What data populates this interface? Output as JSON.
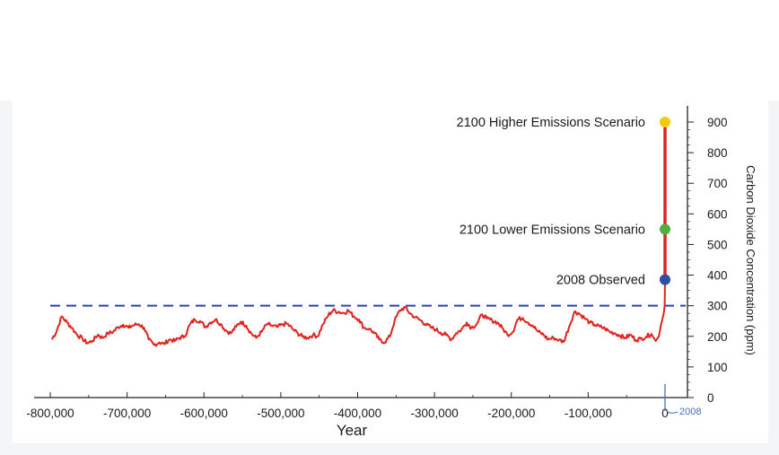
{
  "chart_data": {
    "type": "line",
    "xlabel": "Year",
    "ylabel": "Carbon Dioxide Concentration (ppm)",
    "xlim": [
      -800000,
      0
    ],
    "ylim": [
      0,
      900
    ],
    "x_ticks": [
      -800000,
      -700000,
      -600000,
      -500000,
      -400000,
      -300000,
      -200000,
      -100000,
      0
    ],
    "x_tick_labels": [
      "-800,000",
      "-700,000",
      "-600,000",
      "-500,000",
      "-400,000",
      "-300,000",
      "-200,000",
      "-100,000",
      "0"
    ],
    "y_ticks": [
      0,
      100,
      200,
      300,
      400,
      500,
      600,
      700,
      800,
      900
    ],
    "y_tick_labels": [
      "0",
      "100",
      "200",
      "300",
      "400",
      "500",
      "600",
      "700",
      "800",
      "900"
    ],
    "y_axis_position": "right",
    "grid": false,
    "series": [
      {
        "color": "#e0231d",
        "x": [
          -798000,
          -792000,
          -785000,
          -778000,
          -772000,
          -765000,
          -758000,
          -752000,
          -745000,
          -738000,
          -732000,
          -725000,
          -718000,
          -712000,
          -705000,
          -698000,
          -692000,
          -685000,
          -678000,
          -672000,
          -665000,
          -658000,
          -652000,
          -645000,
          -638000,
          -632000,
          -625000,
          -618000,
          -612000,
          -605000,
          -598000,
          -592000,
          -585000,
          -578000,
          -572000,
          -565000,
          -558000,
          -552000,
          -545000,
          -538000,
          -532000,
          -525000,
          -518000,
          -512000,
          -505000,
          -498000,
          -492000,
          -485000,
          -478000,
          -472000,
          -465000,
          -458000,
          -452000,
          -445000,
          -438000,
          -432000,
          -425000,
          -418000,
          -412000,
          -405000,
          -398000,
          -392000,
          -385000,
          -378000,
          -372000,
          -365000,
          -358000,
          -352000,
          -345000,
          -338000,
          -332000,
          -325000,
          -318000,
          -312000,
          -305000,
          -298000,
          -292000,
          -285000,
          -278000,
          -272000,
          -265000,
          -258000,
          -252000,
          -245000,
          -238000,
          -232000,
          -225000,
          -218000,
          -212000,
          -205000,
          -198000,
          -192000,
          -185000,
          -178000,
          -172000,
          -165000,
          -158000,
          -152000,
          -145000,
          -138000,
          -132000,
          -125000,
          -118000,
          -112000,
          -105000,
          -98000,
          -92000,
          -85000,
          -78000,
          -72000,
          -65000,
          -58000,
          -52000,
          -45000,
          -38000,
          -32000,
          -25000,
          -18000,
          -12000,
          -8000,
          -5000,
          -3000,
          -1500,
          -500,
          0
        ],
        "y": [
          190,
          215,
          265,
          245,
          228,
          205,
          192,
          178,
          185,
          205,
          195,
          210,
          215,
          230,
          238,
          228,
          236,
          240,
          228,
          190,
          172,
          180,
          175,
          190,
          185,
          195,
          200,
          240,
          255,
          250,
          230,
          245,
          255,
          240,
          220,
          210,
          232,
          248,
          235,
          208,
          195,
          215,
          240,
          235,
          230,
          238,
          242,
          225,
          210,
          200,
          195,
          205,
          200,
          240,
          270,
          285,
          280,
          276,
          285,
          265,
          255,
          228,
          225,
          210,
          190,
          180,
          200,
          250,
          285,
          295,
          275,
          262,
          252,
          240,
          230,
          222,
          212,
          205,
          190,
          210,
          222,
          245,
          228,
          240,
          272,
          258,
          252,
          245,
          228,
          205,
          215,
          255,
          260,
          245,
          235,
          215,
          205,
          190,
          195,
          188,
          182,
          230,
          280,
          275,
          260,
          245,
          238,
          232,
          225,
          215,
          210,
          202,
          195,
          205,
          188,
          192,
          198,
          208,
          185,
          200,
          240,
          260,
          278,
          300,
          385
        ]
      }
    ],
    "markers": [
      {
        "label": "2100 Higher Emissions Scenario",
        "x": 0,
        "y": 900,
        "color": "#f2cc0c"
      },
      {
        "label": "2100 Lower Emissions Scenario",
        "x": 0,
        "y": 550,
        "color": "#4fae3c"
      },
      {
        "label": "2008 Observed",
        "x": 0,
        "y": 385,
        "color": "#2d4fa3"
      }
    ],
    "reference_line": {
      "y": 300,
      "style": "dashed",
      "color": "#2b44b0"
    },
    "annotations": [
      {
        "text": "2008",
        "x": 0,
        "color": "#4a6fc0"
      }
    ]
  }
}
